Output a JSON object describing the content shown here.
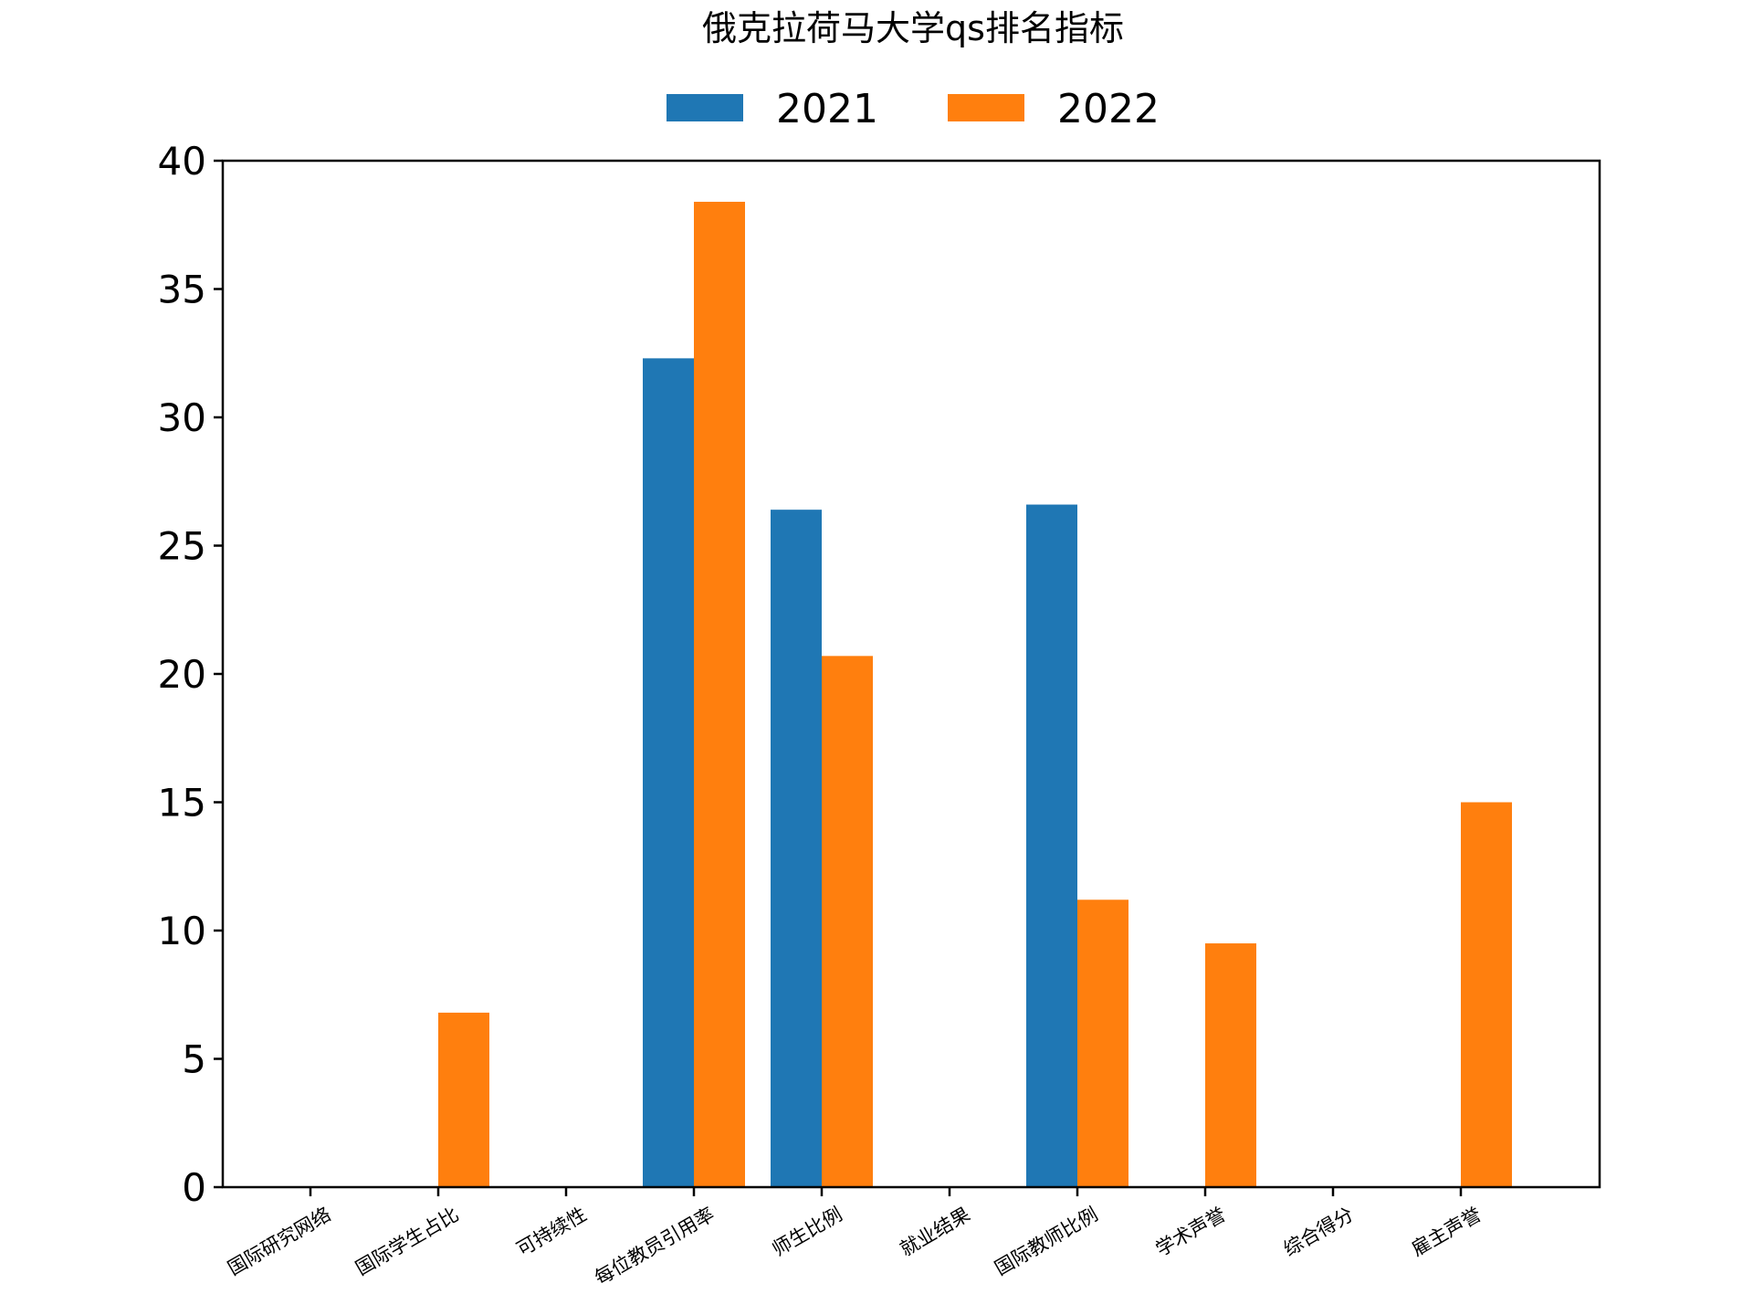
{
  "chart_data": {
    "type": "bar",
    "title": "俄克拉荷马大学qs排名指标",
    "xlabel": "",
    "ylabel": "",
    "categories": [
      "国际研究网络",
      "国际学生占比",
      "可持续性",
      "每位教员引用率",
      "师生比例",
      "就业结果",
      "国际教师比例",
      "学术声誉",
      "综合得分",
      "雇主声誉"
    ],
    "series": [
      {
        "name": "2021",
        "color": "#1f77b4",
        "values": [
          0,
          0,
          0,
          32.3,
          26.4,
          0,
          26.6,
          0,
          0,
          0
        ]
      },
      {
        "name": "2022",
        "color": "#ff7f0e",
        "values": [
          0,
          6.8,
          0,
          38.4,
          20.7,
          0,
          11.2,
          9.5,
          0,
          15.0
        ]
      }
    ],
    "ylim": [
      0,
      40
    ],
    "yticks": [
      0,
      5,
      10,
      15,
      20,
      25,
      30,
      35,
      40
    ],
    "grid": false,
    "legend_position": "top-center"
  }
}
